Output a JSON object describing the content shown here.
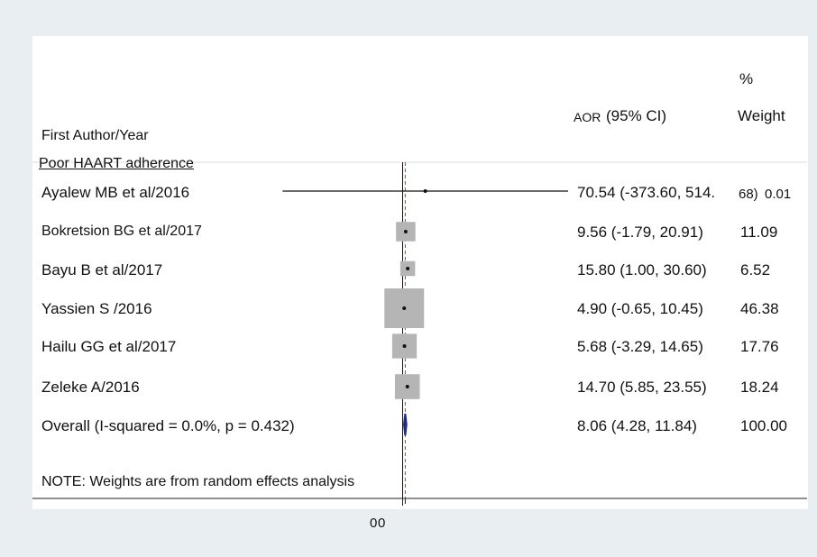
{
  "headers": {
    "study": "First Author/Year",
    "estimate_small": "AOR",
    "estimate": "(95% CI)",
    "weight_pct": "%",
    "weight": "Weight"
  },
  "subgroup": "Poor HAART adherence",
  "note": "NOTE: Weights are from random effects analysis",
  "colors": {
    "line": "#111111",
    "box": "#b5b5b5",
    "diamond": "#1f2a8c",
    "null_line": "#111111",
    "overall_line": "#c0392b",
    "background": "#e9eef2"
  },
  "chart_data": {
    "type": "forest",
    "studies": [
      {
        "label": "Ayalew MB et al/2016",
        "est": 70.54,
        "lo": -373.6,
        "hi": 514.68,
        "ci_text": "70.54 (-373.60, 514.",
        "ci_tail": "68)",
        "weight": "0.01"
      },
      {
        "label": "Bokretsion BG et al/2017",
        "est": 9.56,
        "lo": -1.79,
        "hi": 20.91,
        "ci_text": "9.56 (-1.79, 20.91)",
        "weight": "11.09"
      },
      {
        "label": "Bayu B et al/2017",
        "est": 15.8,
        "lo": 1.0,
        "hi": 30.6,
        "ci_text": "15.80 (1.00, 30.60)",
        "weight": "6.52"
      },
      {
        "label": "Yassien S /2016",
        "est": 4.9,
        "lo": -0.65,
        "hi": 10.45,
        "ci_text": "4.90 (-0.65, 10.45)",
        "weight": "46.38"
      },
      {
        "label": "Hailu GG et al/2017",
        "est": 5.68,
        "lo": -3.29,
        "hi": 14.65,
        "ci_text": "5.68 (-3.29, 14.65)",
        "weight": "17.76"
      },
      {
        "label": "Zeleke A/2016",
        "est": 14.7,
        "lo": 5.85,
        "hi": 23.55,
        "ci_text": "14.70 (5.85, 23.55)",
        "weight": "18.24"
      }
    ],
    "overall": {
      "label": "Overall  (I-squared = 0.0%, p = 0.432)",
      "est": 8.06,
      "lo": 4.28,
      "hi": 11.84,
      "ci_text": "8.06 (4.28, 11.84)",
      "weight": "100.00"
    },
    "xlim": [
      -514.68,
      514.68
    ],
    "null_value": 0,
    "x_tick_labels": [
      "0",
      "0"
    ]
  }
}
